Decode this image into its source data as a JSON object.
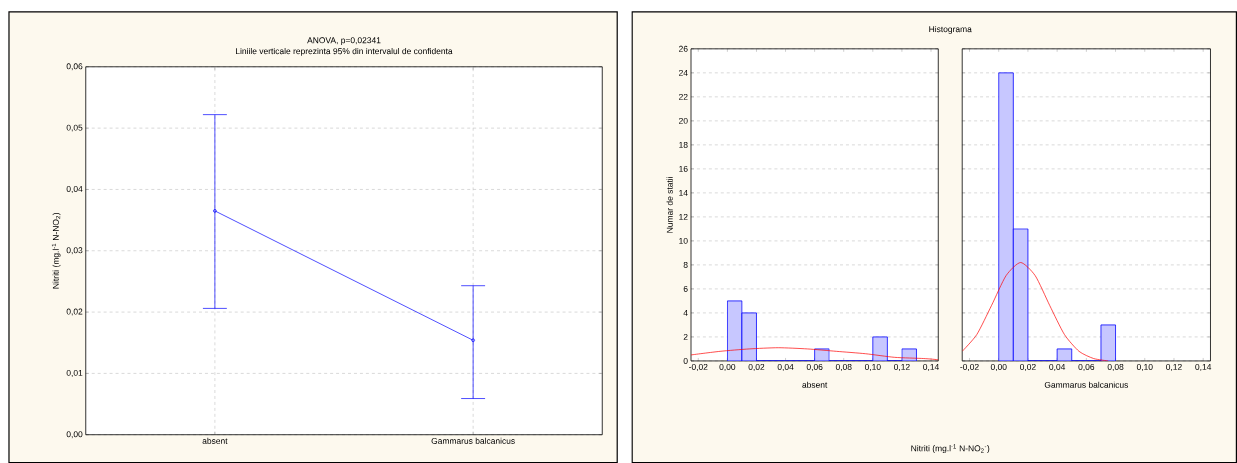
{
  "chart_data": [
    {
      "type": "line",
      "title": "ANOVA, p=0,02341",
      "subtitle": "Liniile verticale reprezinta 95% din intervalul de confidenta",
      "ylabel": "Nitriti (mg.l$^{-1}$ N-NO$_{2}$)",
      "categories": [
        "absent",
        "Gammarus balcanicus"
      ],
      "series": [
        {
          "color": "#0000ff",
          "values": [
            0.0365,
            0.0154
          ],
          "errors": [
            [
              0.0206,
              0.0522
            ],
            [
              0.0059,
              0.0243
            ]
          ]
        }
      ],
      "ylim": [
        0,
        0.06
      ],
      "yticks": [
        {
          "value": 0,
          "label": "0,00"
        },
        {
          "value": 0.01,
          "label": "0,01"
        },
        {
          "value": 0.02,
          "label": "0,02"
        },
        {
          "value": 0.03,
          "label": "0,03"
        },
        {
          "value": 0.04,
          "label": "0,04"
        },
        {
          "value": 0.05,
          "label": "0,05"
        },
        {
          "value": 0.06,
          "label": "0,06"
        }
      ],
      "grid": true,
      "marker": "circle"
    },
    {
      "type": "histogram",
      "title": "Histograma",
      "xlabel": "absent",
      "ylabel": "Numar de statii",
      "series": [
        {
          "type": "histogram",
          "color": "#0000ff",
          "bins": [
            0,
            0.01,
            0.02,
            0.03,
            0.04,
            0.05,
            0.06,
            0.07,
            0.08,
            0.09,
            0.1,
            0.11,
            0.12,
            0.13
          ],
          "values": [
            5,
            4,
            0,
            0,
            0,
            0,
            1,
            0,
            0,
            0,
            2,
            0,
            1
          ]
        },
        {
          "type": "line",
          "color": "#ff0000",
          "x": [
            -0.025,
            -0.005,
            0.015,
            0.035,
            0.055,
            0.075,
            0.095,
            0.115,
            0.135,
            0.145
          ],
          "values": [
            0.5,
            0.8,
            1.0,
            1.1,
            1.0,
            0.8,
            0.6,
            0.3,
            0.2,
            0.1
          ]
        }
      ],
      "xlim": [
        -0.025,
        0.145
      ],
      "xticks": [
        {
          "value": -0.02,
          "label": "-0,02"
        },
        {
          "value": 0,
          "label": "0,00"
        },
        {
          "value": 0.02,
          "label": "0,02"
        },
        {
          "value": 0.04,
          "label": "0,04"
        },
        {
          "value": 0.06,
          "label": "0,06"
        },
        {
          "value": 0.08,
          "label": "0,08"
        },
        {
          "value": 0.1,
          "label": "0,10"
        },
        {
          "value": 0.12,
          "label": "0,12"
        },
        {
          "value": 0.14,
          "label": "0,14"
        }
      ],
      "ylim": [
        0,
        26
      ],
      "yticks": [
        0,
        2,
        4,
        6,
        8,
        10,
        12,
        14,
        16,
        18,
        20,
        22,
        24,
        26
      ],
      "grid": "y"
    },
    {
      "type": "histogram",
      "xlabel": "Gammarus balcanicus",
      "annotations": [
        "Nitriti (mg.l$^{-1}$ N-NO$_{2}$$^{-}$)"
      ],
      "series": [
        {
          "type": "histogram",
          "color": "#0000ff",
          "bins": [
            0,
            0.01,
            0.02,
            0.03,
            0.04,
            0.05,
            0.06,
            0.07,
            0.08
          ],
          "values": [
            24,
            11,
            0,
            0,
            1,
            0,
            0,
            3
          ]
        },
        {
          "type": "line",
          "color": "#ff0000",
          "x": [
            -0.025,
            -0.015,
            -0.005,
            0.005,
            0.015,
            0.025,
            0.035,
            0.045,
            0.055,
            0.065,
            0.075
          ],
          "values": [
            0.8,
            2.2,
            4.6,
            7.1,
            8.2,
            7.1,
            4.6,
            2.2,
            0.8,
            0.2,
            0
          ]
        }
      ],
      "xlim": [
        -0.025,
        0.145
      ],
      "xticks": [
        {
          "value": -0.02,
          "label": "-0,02"
        },
        {
          "value": 0,
          "label": "0,00"
        },
        {
          "value": 0.02,
          "label": "0,02"
        },
        {
          "value": 0.04,
          "label": "0,04"
        },
        {
          "value": 0.06,
          "label": "0,06"
        },
        {
          "value": 0.08,
          "label": "0,08"
        },
        {
          "value": 0.1,
          "label": "0,10"
        },
        {
          "value": 0.12,
          "label": "0,12"
        },
        {
          "value": 0.14,
          "label": "0,14"
        }
      ],
      "ylim": [
        0,
        26
      ],
      "yticks": [
        0,
        2,
        4,
        6,
        8,
        10,
        12,
        14,
        16,
        18,
        20,
        22,
        24,
        26
      ],
      "grid": "y",
      "tick_labels": "x"
    }
  ]
}
